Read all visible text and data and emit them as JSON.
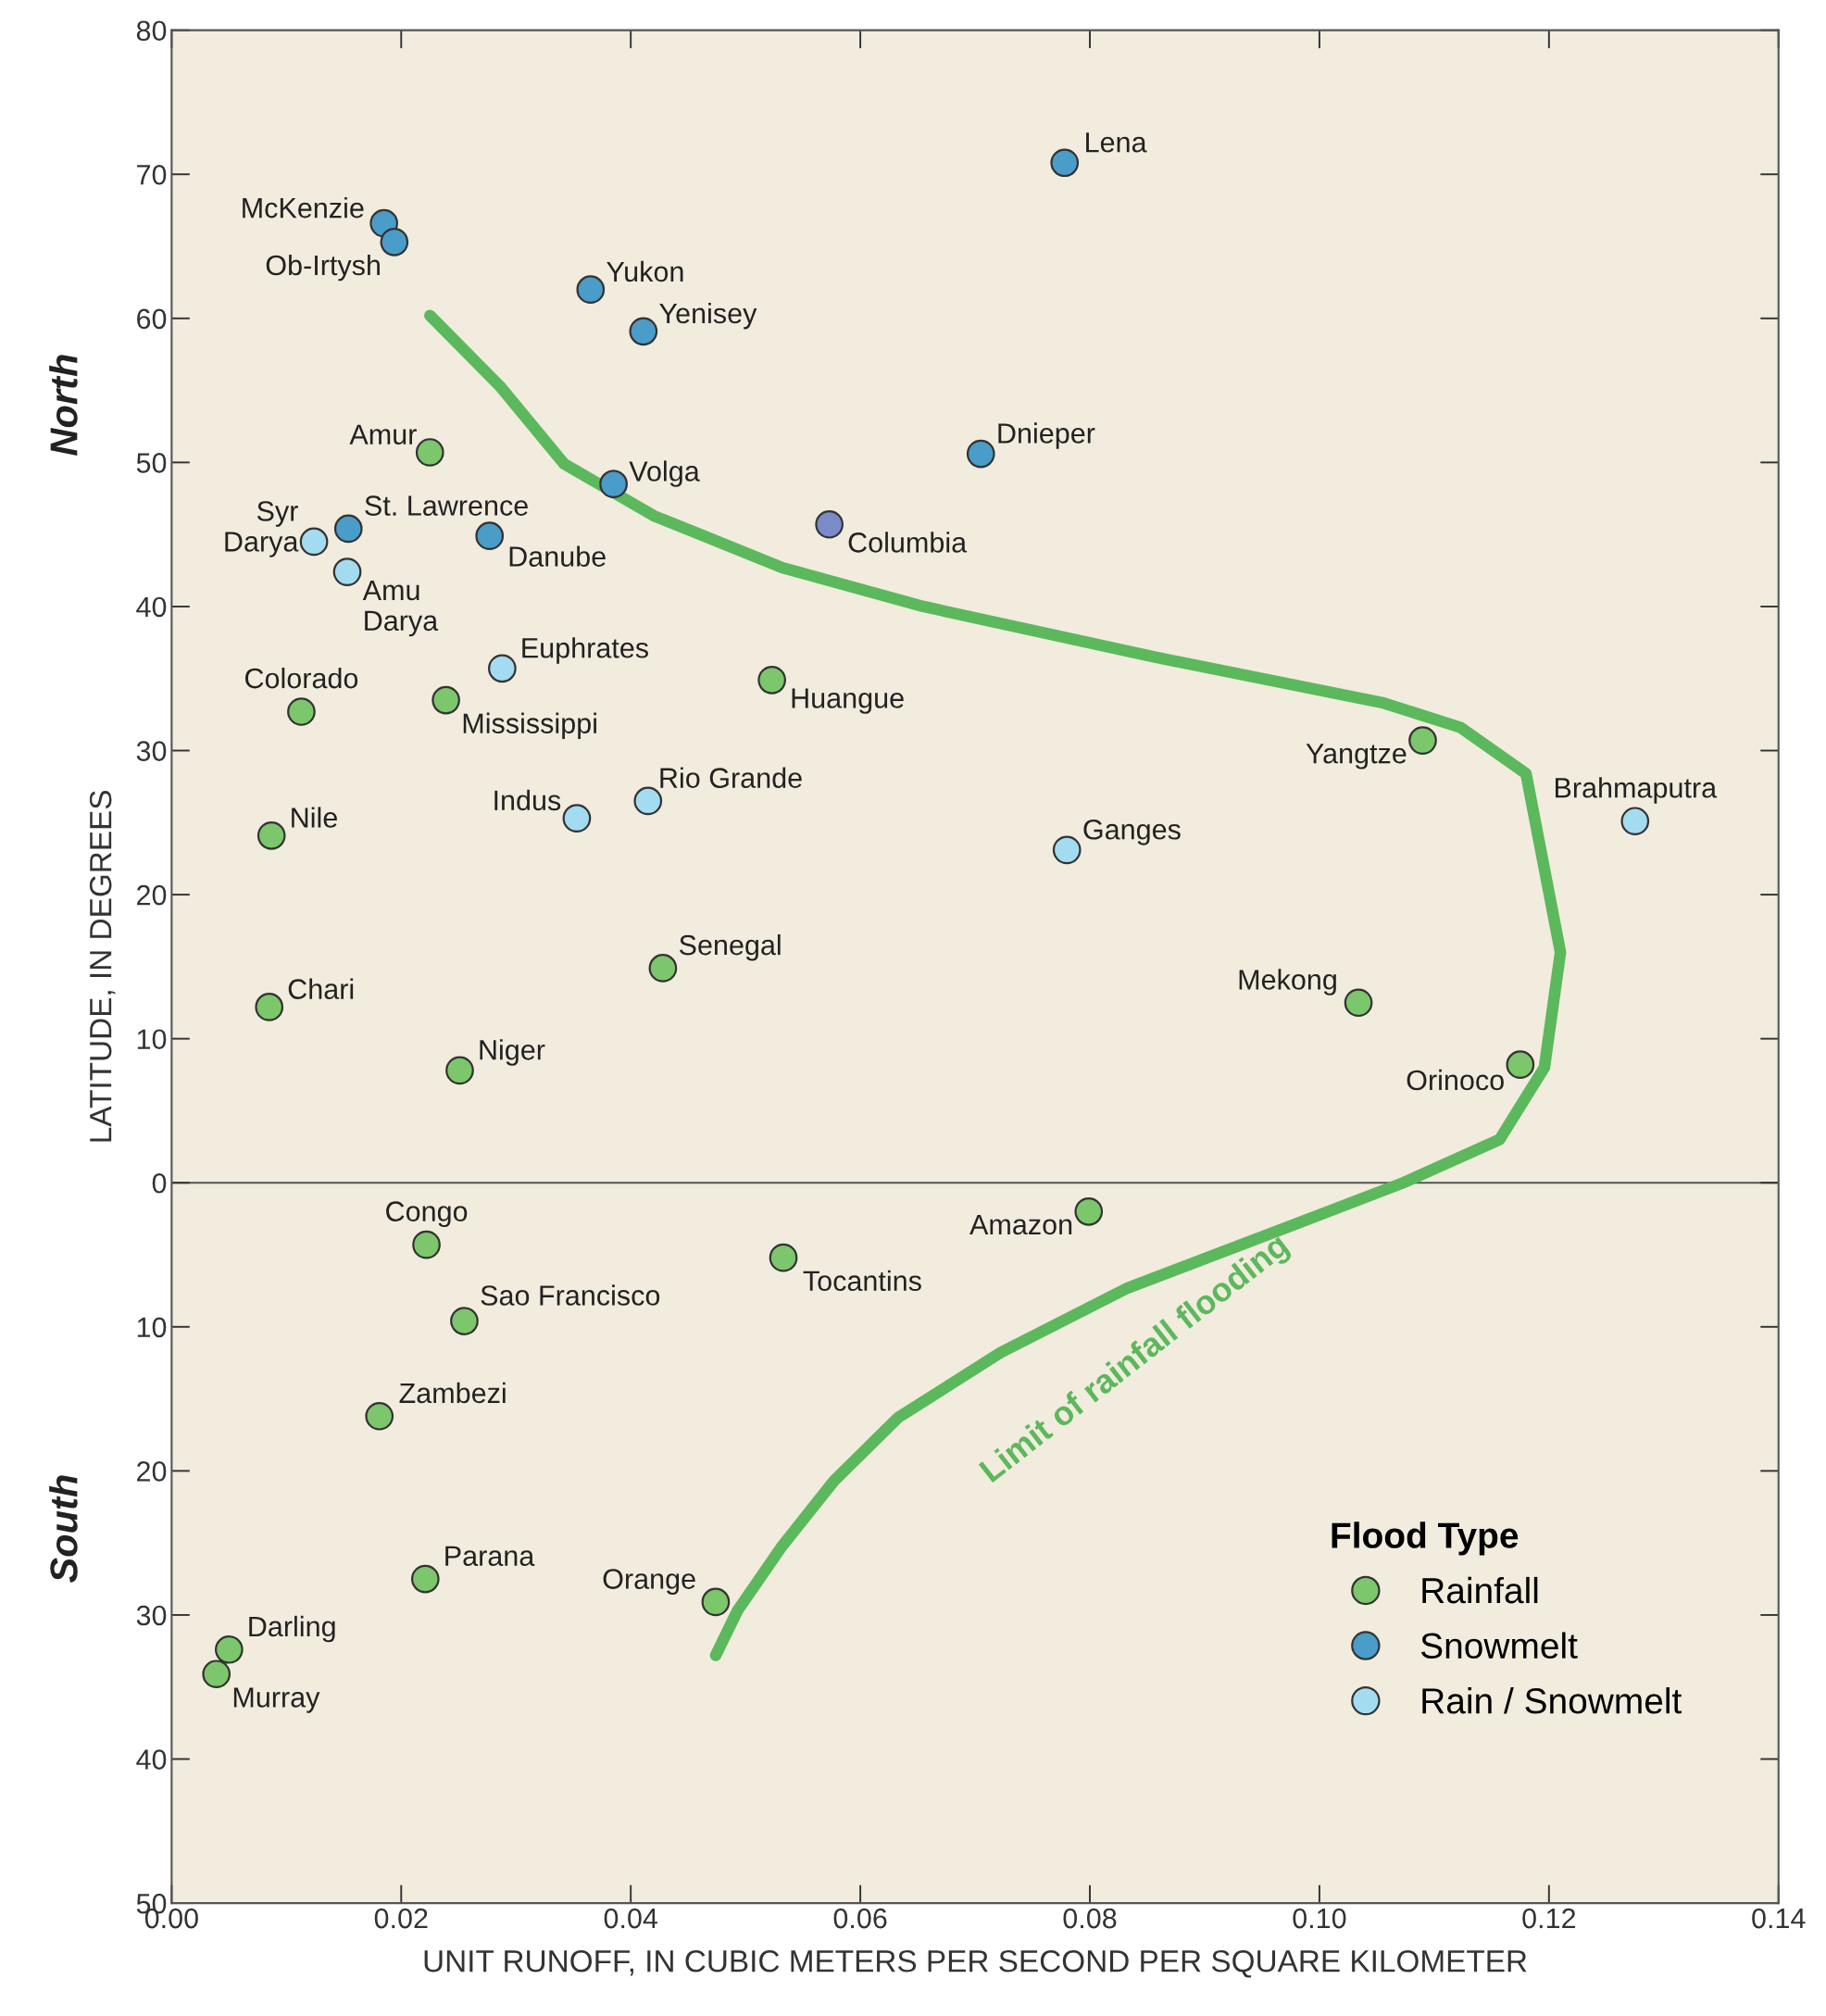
{
  "chart_data": {
    "type": "scatter",
    "xlabel": "UNIT RUNOFF, IN CUBIC METERS PER SECOND PER SQUARE KILOMETER",
    "ylabel": "LATITUDE, IN DEGREES",
    "legend_title": "Flood Type",
    "legend": "bottom right",
    "grid": false,
    "xlim": [
      0,
      0.14
    ],
    "xticks": [
      {
        "value": 0,
        "label": "0.00"
      },
      {
        "value": 0.02,
        "label": "0.02"
      },
      {
        "value": 0.04,
        "label": "0.04"
      },
      {
        "value": 0.06,
        "label": "0.06"
      },
      {
        "value": 0.08,
        "label": "0.08"
      },
      {
        "value": 0.1,
        "label": "0.10"
      },
      {
        "value": 0.12,
        "label": "0.12"
      },
      {
        "value": 0.14,
        "label": "0.14"
      }
    ],
    "ylim": [
      -50,
      80
    ],
    "yticks": [
      80,
      70,
      60,
      50,
      40,
      30,
      20,
      10,
      0,
      {
        "value": -10,
        "label": "10"
      },
      {
        "value": -20,
        "label": "20"
      },
      {
        "value": -30,
        "label": "30"
      },
      {
        "value": -40,
        "label": "40"
      },
      {
        "value": -50,
        "label": "50"
      }
    ],
    "ref_lines": [
      {
        "axis": "y",
        "value": 0,
        "color": "#555555"
      }
    ],
    "series": [
      {
        "name": "Rainfall",
        "color": "#7cc66b",
        "x": [
          0.0225,
          0.0113,
          0.0239,
          0.0523,
          0.109,
          0.0087,
          0.0428,
          0.0085,
          0.1034,
          0.0251,
          0.1175,
          0.0799,
          0.0222,
          0.0533,
          0.0255,
          0.0181,
          0.0221,
          0.0474,
          0.005,
          0.0039
        ],
        "values": [
          50.7,
          32.7,
          33.5,
          34.9,
          30.7,
          24.1,
          14.9,
          12.2,
          12.5,
          7.8,
          8.2,
          -2.0,
          -4.3,
          -5.2,
          -9.6,
          -16.2,
          -27.5,
          -29.1,
          -32.4,
          -34.1
        ]
      },
      {
        "name": "Snowmelt",
        "color": "#4a9cc9",
        "colors": [
          "#4a9cc9",
          "#4a9cc9",
          "#4a9cc9",
          "#4a9cc9",
          "#4a9cc9",
          "#4a9cc9",
          "#4a9cc9",
          "#4a9cc9",
          "#4a9cc9",
          "#7a8cc8"
        ],
        "x": [
          0.0185,
          0.0194,
          0.0778,
          0.0365,
          0.0411,
          0.0705,
          0.0385,
          0.0154,
          0.0277,
          0.0573
        ],
        "values": [
          66.6,
          65.3,
          70.8,
          62.0,
          59.1,
          50.6,
          48.5,
          45.4,
          44.9,
          45.7
        ]
      },
      {
        "name": "Rain / Snowmelt",
        "color": "#a3dcf0",
        "x": [
          0.0124,
          0.0153,
          0.0288,
          0.1275,
          0.0353,
          0.0415,
          0.078
        ],
        "values": [
          44.5,
          42.4,
          35.7,
          25.1,
          25.3,
          26.5,
          23.1
        ]
      },
      {
        "type": "line",
        "color": "#5cb85c",
        "x": [
          0.0225,
          0.0287,
          0.0342,
          0.042,
          0.0532,
          0.0655,
          0.0856,
          0.1056,
          0.1123,
          0.118,
          0.121,
          0.1196,
          0.1157,
          0.1073,
          0.0978,
          0.0833,
          0.0722,
          0.0633,
          0.0577,
          0.0532,
          0.0493,
          0.0474
        ],
        "values": [
          60.2,
          55.2,
          49.9,
          46.3,
          42.7,
          40.0,
          36.5,
          33.3,
          31.6,
          28.4,
          16.0,
          8.0,
          3.0,
          0.0,
          -2.9,
          -7.3,
          -11.8,
          -16.3,
          -20.7,
          -25.2,
          -29.7,
          -32.8
        ]
      }
    ],
    "annotations": [
      {
        "text": "McKenzie",
        "x": 0.0185,
        "y": 66.6
      },
      {
        "text": "Ob-Irtysh",
        "x": 0.0194,
        "y": 65.3
      },
      {
        "text": "Lena",
        "x": 0.0778,
        "y": 70.8
      },
      {
        "text": "Yukon",
        "x": 0.0365,
        "y": 62.0
      },
      {
        "text": "Yenisey",
        "x": 0.0411,
        "y": 59.1
      },
      {
        "text": "Amur",
        "x": 0.0225,
        "y": 50.7
      },
      {
        "text": "Dnieper",
        "x": 0.0705,
        "y": 50.6
      },
      {
        "text": "Volga",
        "x": 0.0385,
        "y": 48.5
      },
      {
        "text": "Syr\nDarya",
        "x": 0.0124,
        "y": 44.5
      },
      {
        "text": "St. Lawrence",
        "x": 0.0154,
        "y": 45.4
      },
      {
        "text": "Danube",
        "x": 0.0277,
        "y": 44.9
      },
      {
        "text": "Columbia",
        "x": 0.0573,
        "y": 45.7
      },
      {
        "text": "Amu\nDarya",
        "x": 0.0153,
        "y": 42.4
      },
      {
        "text": "Euphrates",
        "x": 0.0288,
        "y": 35.7
      },
      {
        "text": "Colorado",
        "x": 0.0113,
        "y": 32.7
      },
      {
        "text": "Mississippi",
        "x": 0.0239,
        "y": 33.5
      },
      {
        "text": "Huangue",
        "x": 0.0523,
        "y": 34.9
      },
      {
        "text": "Yangtze",
        "x": 0.109,
        "y": 30.7
      },
      {
        "text": "Brahmaputra",
        "x": 0.1275,
        "y": 25.1
      },
      {
        "text": "Indus",
        "x": 0.0353,
        "y": 25.3
      },
      {
        "text": "Rio Grande",
        "x": 0.0415,
        "y": 26.5
      },
      {
        "text": "Nile",
        "x": 0.0087,
        "y": 24.1
      },
      {
        "text": "Ganges",
        "x": 0.078,
        "y": 23.1
      },
      {
        "text": "Senegal",
        "x": 0.0428,
        "y": 14.9
      },
      {
        "text": "Chari",
        "x": 0.0085,
        "y": 12.2
      },
      {
        "text": "Mekong",
        "x": 0.1034,
        "y": 12.5
      },
      {
        "text": "Niger",
        "x": 0.0251,
        "y": 7.8
      },
      {
        "text": "Orinoco",
        "x": 0.1175,
        "y": 8.2
      },
      {
        "text": "Amazon",
        "x": 0.0799,
        "y": -2.0
      },
      {
        "text": "Congo",
        "x": 0.0222,
        "y": -4.3
      },
      {
        "text": "Tocantins",
        "x": 0.0533,
        "y": -5.2
      },
      {
        "text": "Sao Francisco",
        "x": 0.0255,
        "y": -9.6
      },
      {
        "text": "Zambezi",
        "x": 0.0181,
        "y": -16.2
      },
      {
        "text": "Parana",
        "x": 0.0221,
        "y": -27.5
      },
      {
        "text": "Orange",
        "x": 0.0474,
        "y": -29.1
      },
      {
        "text": "Darling",
        "x": 0.005,
        "y": -32.4
      },
      {
        "text": "Murray",
        "x": 0.0039,
        "y": -34.1
      },
      "Limit of rainfall flooding",
      "North",
      "South"
    ]
  }
}
